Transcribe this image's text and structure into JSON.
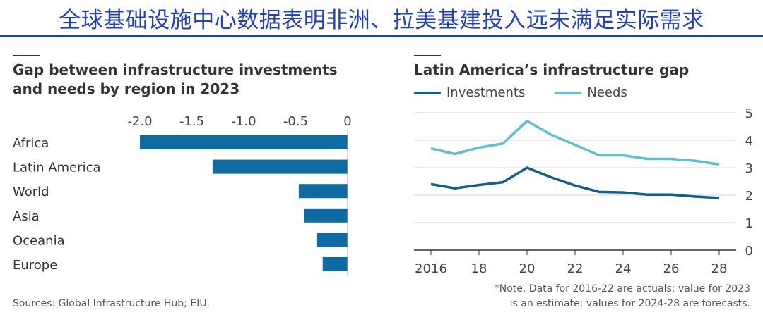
{
  "header": {
    "title": "全球基础设施中心数据表明非洲、拉美基建投入远未满足实际需求",
    "accent_color": "#1f3fbf"
  },
  "left_chart": {
    "title_line1": "Gap between infrastructure investments",
    "title_line2": "and needs by region in 2023",
    "source": "Sources: Global Infrastructure Hub; EIU."
  },
  "right_chart": {
    "title": "Latin America’s infrastructure gap",
    "note_line1": "*Note. Data for 2016-22 are actuals; value for 2023",
    "note_line2": "is an estimate; values for 2024-28 are forecasts."
  },
  "chart_data": [
    {
      "type": "bar",
      "orientation": "horizontal",
      "title": "Gap between infrastructure investments and needs by region in 2023",
      "categories": [
        "Africa",
        "Latin America",
        "World",
        "Asia",
        "Oceania",
        "Europe"
      ],
      "values": [
        -2.0,
        -1.3,
        -0.47,
        -0.42,
        -0.3,
        -0.24
      ],
      "xlim": [
        -2.0,
        0
      ],
      "ticks": [
        -2.0,
        -1.5,
        -1.0,
        -0.5,
        0
      ],
      "tick_labels": [
        "-2.0",
        "-1.5",
        "-1.0",
        "-0.5",
        "0"
      ],
      "bar_color": "#0e6aa3"
    },
    {
      "type": "line",
      "title": "Latin America’s infrastructure gap",
      "x": [
        2016,
        2017,
        2018,
        2019,
        2020,
        2021,
        2022,
        2023,
        2024,
        2025,
        2026,
        2027,
        2028
      ],
      "series": [
        {
          "name": "Investments",
          "color": "#125e8a",
          "values": [
            2.4,
            2.25,
            2.37,
            2.47,
            3.0,
            2.65,
            2.35,
            2.12,
            2.1,
            2.02,
            2.02,
            1.95,
            1.9
          ]
        },
        {
          "name": "Needs",
          "color": "#5cc0cf",
          "values": [
            3.7,
            3.5,
            3.73,
            3.88,
            4.7,
            4.2,
            3.83,
            3.45,
            3.45,
            3.32,
            3.32,
            3.25,
            3.12
          ]
        }
      ],
      "ylim": [
        0,
        5
      ],
      "yticks": [
        "0",
        "1",
        "2",
        "3",
        "4",
        "5"
      ],
      "xticks": [
        "2016",
        "18",
        "20",
        "22",
        "24",
        "26",
        "28"
      ],
      "xtick_values": [
        2016,
        2018,
        2020,
        2022,
        2024,
        2026,
        2028
      ]
    }
  ]
}
